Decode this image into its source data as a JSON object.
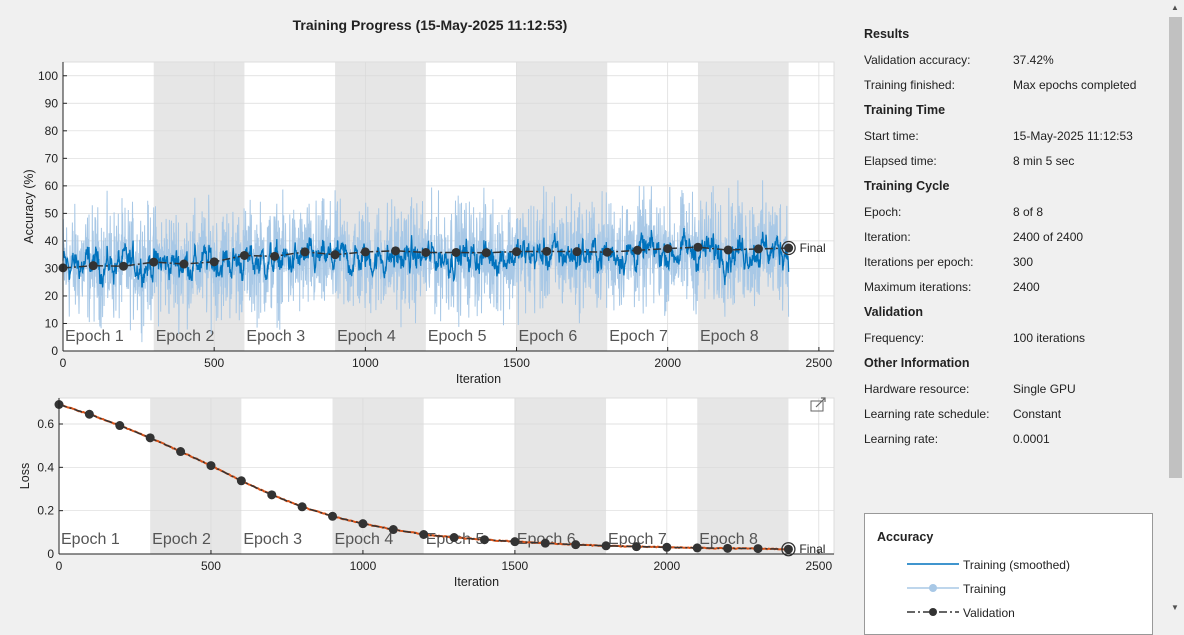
{
  "title": "Training Progress (15-May-2025 11:12:53)",
  "colors": {
    "smoothed": "#0072bd",
    "training": "#a8c8e6",
    "validation": "#333333",
    "loss_training": "#d95319",
    "epoch_band": "#e6e6e6"
  },
  "accuracy_chart": {
    "ylabel": "Accuracy (%)",
    "xlabel": "Iteration",
    "final_label": "Final",
    "x_ticks": [
      "0",
      "500",
      "1000",
      "1500",
      "2000",
      "2500"
    ],
    "y_ticks": [
      "0",
      "10",
      "20",
      "30",
      "40",
      "50",
      "60",
      "70",
      "80",
      "90",
      "100"
    ],
    "epoch_labels": [
      "Epoch 1",
      "Epoch 2",
      "Epoch 3",
      "Epoch 4",
      "Epoch 5",
      "Epoch 6",
      "Epoch 7",
      "Epoch 8"
    ]
  },
  "loss_chart": {
    "ylabel": "Loss",
    "xlabel": "Iteration",
    "final_label": "Final",
    "x_ticks": [
      "0",
      "500",
      "1000",
      "1500",
      "2000",
      "2500"
    ],
    "y_ticks": [
      "0",
      "0.2",
      "0.4",
      "0.6"
    ],
    "epoch_labels": [
      "Epoch 1",
      "Epoch 2",
      "Epoch 3",
      "Epoch 4",
      "Epoch 5",
      "Epoch 6",
      "Epoch 7",
      "Epoch 8"
    ]
  },
  "chart_data": [
    {
      "type": "line",
      "xlabel": "Iteration",
      "ylabel": "Accuracy (%)",
      "xlim": [
        0,
        2550
      ],
      "ylim": [
        0,
        105
      ],
      "epoch_size": 300,
      "num_epochs": 8,
      "series": [
        {
          "name": "Validation",
          "x": [
            0,
            100,
            200,
            300,
            400,
            500,
            600,
            700,
            800,
            900,
            1000,
            1100,
            1200,
            1300,
            1400,
            1500,
            1600,
            1700,
            1800,
            1900,
            2000,
            2100,
            2200,
            2300,
            2400
          ],
          "values": [
            30.2,
            31,
            30.8,
            32.3,
            31.6,
            32.4,
            34.7,
            34.4,
            36,
            35,
            36,
            36.4,
            35.8,
            35.8,
            35.7,
            36.1,
            36.2,
            36.1,
            35.9,
            36.6,
            37.2,
            37.7,
            36.7,
            37.1,
            37.42
          ]
        },
        {
          "name": "Training (smoothed)",
          "noisy": true,
          "approx_mean_start": 31,
          "approx_mean_end": 37
        },
        {
          "name": "Training",
          "noisy": true,
          "approx_range": [
            10,
            70
          ]
        }
      ]
    },
    {
      "type": "line",
      "xlabel": "Iteration",
      "ylabel": "Loss",
      "xlim": [
        0,
        2550
      ],
      "ylim": [
        0,
        0.72
      ],
      "epoch_size": 300,
      "num_epochs": 8,
      "series": [
        {
          "name": "Validation",
          "x": [
            0,
            100,
            200,
            300,
            400,
            500,
            600,
            700,
            800,
            900,
            1000,
            1100,
            1200,
            1300,
            1400,
            1500,
            1600,
            1700,
            1800,
            1900,
            2000,
            2100,
            2200,
            2300,
            2400
          ],
          "values": [
            0.69,
            0.645,
            0.593,
            0.536,
            0.473,
            0.408,
            0.338,
            0.273,
            0.218,
            0.174,
            0.14,
            0.113,
            0.09,
            0.076,
            0.066,
            0.057,
            0.05,
            0.043,
            0.038,
            0.034,
            0.031,
            0.028,
            0.026,
            0.025,
            0.022
          ]
        }
      ]
    }
  ],
  "info": {
    "results_head": "Results",
    "val_acc_label": "Validation accuracy:",
    "val_acc": "37.42%",
    "finished_label": "Training finished:",
    "finished": "Max epochs completed",
    "time_head": "Training Time",
    "start_label": "Start time:",
    "start": "15-May-2025 11:12:53",
    "elapsed_label": "Elapsed time:",
    "elapsed": "8 min 5 sec",
    "cycle_head": "Training Cycle",
    "epoch_label": "Epoch:",
    "epoch": "8 of 8",
    "iteration_label": "Iteration:",
    "iteration": "2400 of 2400",
    "ipe_label": "Iterations per epoch:",
    "ipe": "300",
    "maxit_label": "Maximum iterations:",
    "maxit": "2400",
    "validation_head": "Validation",
    "freq_label": "Frequency:",
    "freq": "100 iterations",
    "other_head": "Other Information",
    "hw_label": "Hardware resource:",
    "hw": "Single GPU",
    "lrs_label": "Learning rate schedule:",
    "lrs": "Constant",
    "lr_label": "Learning rate:",
    "lr": "0.0001"
  },
  "legend": {
    "title": "Accuracy",
    "items": [
      "Training (smoothed)",
      "Training",
      "Validation"
    ]
  }
}
